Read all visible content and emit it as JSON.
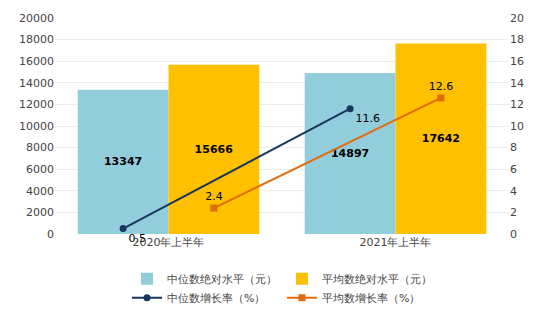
{
  "chart_data": {
    "type": "bar",
    "categories": [
      "2020年上半年",
      "2021年上半年"
    ],
    "series": [
      {
        "name": "中位数绝对水平（元）",
        "type": "bar",
        "color": "#92CDDC",
        "values": [
          13347,
          14897
        ]
      },
      {
        "name": "平均数绝对水平（元）",
        "type": "bar",
        "color": "#FFC000",
        "values": [
          15666,
          17642
        ]
      },
      {
        "name": "中位数增长率（%）",
        "type": "line",
        "axis": "y2",
        "color": "#17375E",
        "marker": "circle",
        "values": [
          0.5,
          11.6
        ]
      },
      {
        "name": "平均数增长率（%）",
        "type": "line",
        "axis": "y2",
        "color": "#E26B0A",
        "marker": "square",
        "values": [
          2.4,
          12.6
        ]
      }
    ],
    "ylim": [
      0,
      20000
    ],
    "yticks": [
      0,
      2000,
      4000,
      6000,
      8000,
      10000,
      12000,
      14000,
      16000,
      18000,
      20000
    ],
    "y2lim": [
      0,
      20
    ],
    "y2ticks": [
      0,
      2,
      4,
      6,
      8,
      10,
      12,
      14,
      16,
      18,
      20
    ],
    "grid": true,
    "legend": "bottom",
    "data_labels": true
  }
}
